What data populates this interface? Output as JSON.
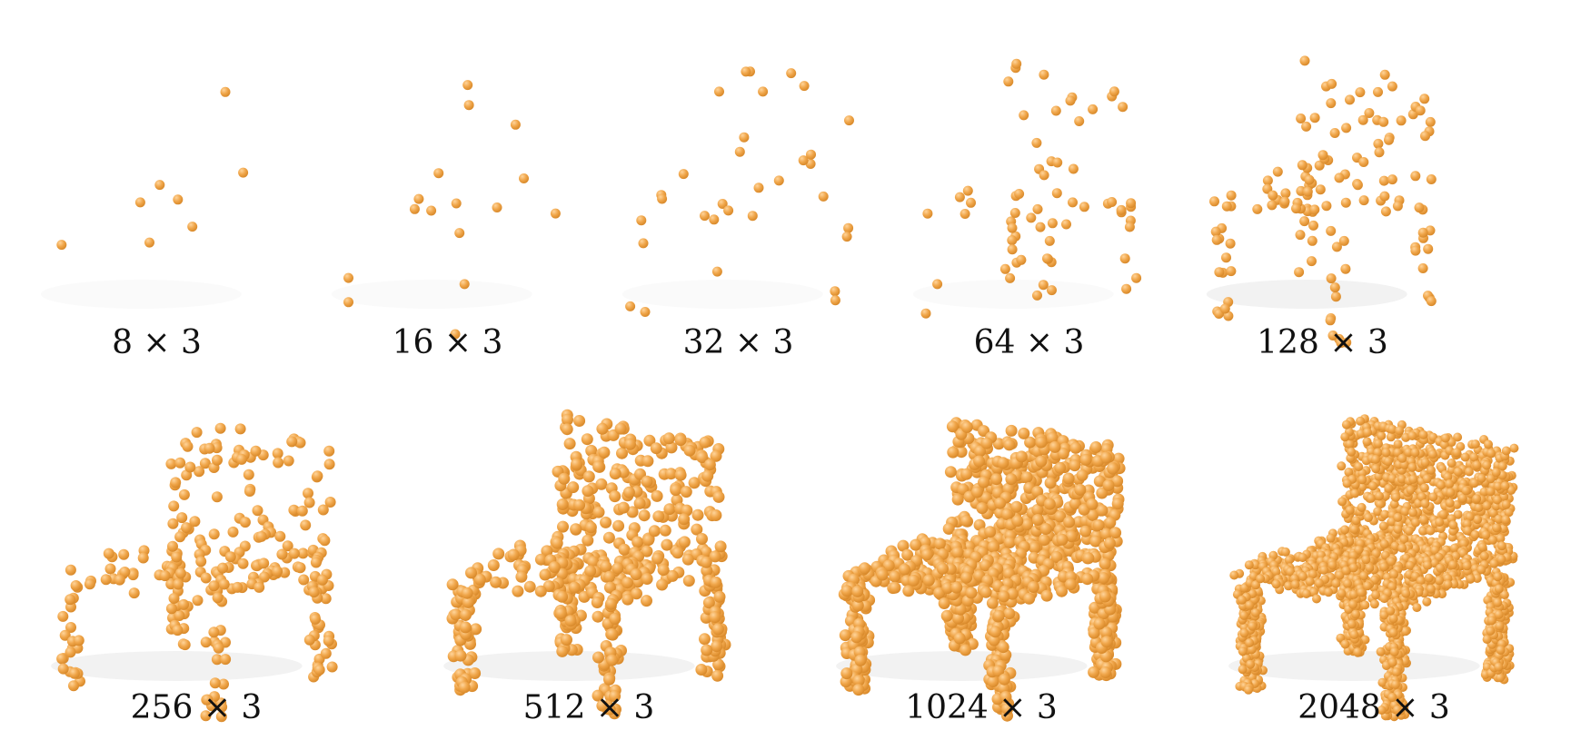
{
  "figure": {
    "panels": [
      {
        "label": "8 × 3",
        "points": 8
      },
      {
        "label": "16 × 3",
        "points": 16
      },
      {
        "label": "32 × 3",
        "points": 32
      },
      {
        "label": "64 × 3",
        "points": 64
      },
      {
        "label": "128 × 3",
        "points": 128
      },
      {
        "label": "256 × 3",
        "points": 256
      },
      {
        "label": "512 × 3",
        "points": 512
      },
      {
        "label": "1024 × 3",
        "points": 1024
      },
      {
        "label": "2048 × 3",
        "points": 2048
      }
    ],
    "subject": "chair point cloud",
    "point_color": "#f0a64a",
    "point_shade": "#d98a2b",
    "background": "#ffffff"
  }
}
